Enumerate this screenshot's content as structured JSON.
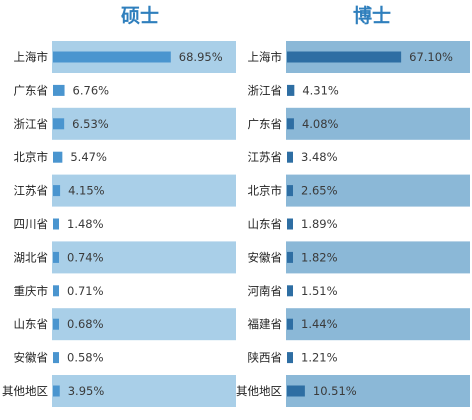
{
  "colors": {
    "masters_bar": "#4a95cf",
    "masters_band": "#a9cfe8",
    "phd_bar": "#2e6ea3",
    "phd_band": "#8bb8d7",
    "title": "#2f7fbd"
  },
  "chart_data": [
    {
      "type": "bar",
      "orientation": "horizontal",
      "title": "硕士",
      "categories": [
        "上海市",
        "广东省",
        "浙江省",
        "北京市",
        "江苏省",
        "四川省",
        "湖北省",
        "重庆市",
        "山东省",
        "安徽省",
        "其他地区"
      ],
      "values": [
        68.95,
        6.76,
        6.53,
        5.47,
        4.15,
        1.48,
        0.74,
        0.71,
        0.68,
        0.58,
        3.95
      ],
      "value_labels": [
        "68.95%",
        "6.76%",
        "6.53%",
        "5.47%",
        "4.15%",
        "1.48%",
        "0.74%",
        "0.71%",
        "0.68%",
        "0.58%",
        "3.95%"
      ],
      "banded_rows": [
        true,
        false,
        true,
        false,
        true,
        false,
        true,
        false,
        true,
        false,
        true
      ],
      "xlim": [
        0,
        100
      ],
      "xlabel": "",
      "ylabel": "",
      "grid": false
    },
    {
      "type": "bar",
      "orientation": "horizontal",
      "title": "博士",
      "categories": [
        "上海市",
        "浙江省",
        "广东省",
        "江苏省",
        "北京市",
        "山东省",
        "安徽省",
        "河南省",
        "福建省",
        "陕西省",
        "其他地区"
      ],
      "values": [
        67.1,
        4.31,
        4.08,
        3.48,
        2.65,
        1.89,
        1.82,
        1.51,
        1.44,
        1.21,
        10.51
      ],
      "value_labels": [
        "67.10%",
        "4.31%",
        "4.08%",
        "3.48%",
        "2.65%",
        "1.89%",
        "1.82%",
        "1.51%",
        "1.44%",
        "1.21%",
        "10.51%"
      ],
      "banded_rows": [
        true,
        false,
        true,
        false,
        true,
        false,
        true,
        false,
        true,
        false,
        true
      ],
      "xlim": [
        0,
        100
      ],
      "xlabel": "",
      "ylabel": "",
      "grid": false
    }
  ]
}
